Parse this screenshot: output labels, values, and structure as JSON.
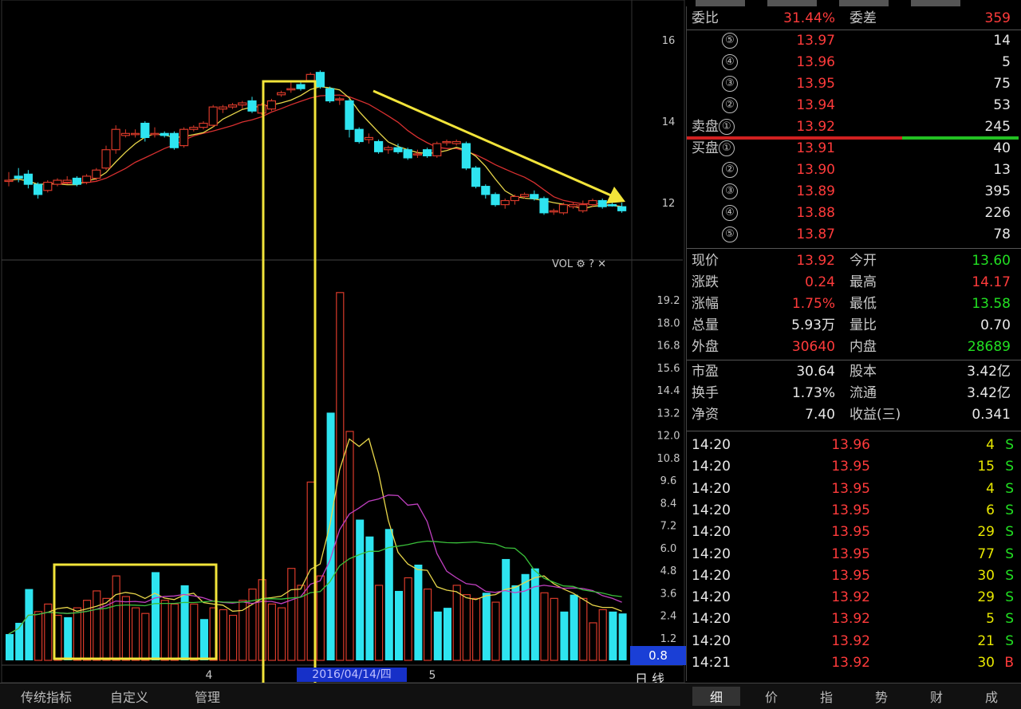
{
  "chart_data": {
    "type": "candlestick+bar",
    "price_axis": {
      "ticks": [
        "16",
        "14",
        "12"
      ],
      "ylim": [
        11.1,
        16.9
      ]
    },
    "volume_axis": {
      "ticks": [
        "19.2",
        "18.0",
        "16.8",
        "15.6",
        "14.4",
        "13.2",
        "12.0",
        "10.8",
        "9.6",
        "8.4",
        "7.2",
        "6.0",
        "4.8",
        "3.6",
        "2.4",
        "1.2"
      ],
      "ylim": [
        0,
        20.4
      ]
    },
    "x_ticks": [
      "4",
      "5"
    ],
    "candles": [
      {
        "o": 12.55,
        "c": 12.55,
        "h": 12.75,
        "l": 12.4,
        "up": true
      },
      {
        "o": 12.65,
        "c": 12.6,
        "h": 12.85,
        "l": 12.5,
        "up": false
      },
      {
        "o": 12.7,
        "c": 12.45,
        "h": 12.8,
        "l": 12.35,
        "up": false
      },
      {
        "o": 12.45,
        "c": 12.2,
        "h": 12.5,
        "l": 12.1,
        "up": false
      },
      {
        "o": 12.3,
        "c": 12.5,
        "h": 12.55,
        "l": 12.25,
        "up": true
      },
      {
        "o": 12.45,
        "c": 12.55,
        "h": 12.6,
        "l": 12.4,
        "up": true
      },
      {
        "o": 12.55,
        "c": 12.5,
        "h": 12.65,
        "l": 12.45,
        "up": true
      },
      {
        "o": 12.6,
        "c": 12.45,
        "h": 12.65,
        "l": 12.4,
        "up": false
      },
      {
        "o": 12.5,
        "c": 12.65,
        "h": 12.7,
        "l": 12.45,
        "up": true
      },
      {
        "o": 12.6,
        "c": 12.8,
        "h": 12.85,
        "l": 12.55,
        "up": true
      },
      {
        "o": 12.85,
        "c": 13.3,
        "h": 13.4,
        "l": 12.8,
        "up": true
      },
      {
        "o": 13.3,
        "c": 13.8,
        "h": 13.9,
        "l": 13.2,
        "up": true
      },
      {
        "o": 13.7,
        "c": 13.65,
        "h": 13.8,
        "l": 13.6,
        "up": true
      },
      {
        "o": 13.7,
        "c": 13.7,
        "h": 13.8,
        "l": 13.6,
        "up": true
      },
      {
        "o": 13.95,
        "c": 13.6,
        "h": 14.0,
        "l": 13.5,
        "up": false
      },
      {
        "o": 13.7,
        "c": 13.7,
        "h": 13.85,
        "l": 13.6,
        "up": true
      },
      {
        "o": 13.7,
        "c": 13.65,
        "h": 13.75,
        "l": 13.6,
        "up": false
      },
      {
        "o": 13.7,
        "c": 13.35,
        "h": 13.75,
        "l": 13.3,
        "up": false
      },
      {
        "o": 13.4,
        "c": 13.8,
        "h": 13.85,
        "l": 13.35,
        "up": true
      },
      {
        "o": 13.8,
        "c": 13.85,
        "h": 13.9,
        "l": 13.75,
        "up": true
      },
      {
        "o": 13.85,
        "c": 13.95,
        "h": 14.0,
        "l": 13.8,
        "up": true
      },
      {
        "o": 13.9,
        "c": 14.35,
        "h": 14.4,
        "l": 13.85,
        "up": true
      },
      {
        "o": 14.35,
        "c": 14.3,
        "h": 14.4,
        "l": 14.2,
        "up": true
      },
      {
        "o": 14.35,
        "c": 14.4,
        "h": 14.45,
        "l": 14.3,
        "up": true
      },
      {
        "o": 14.4,
        "c": 14.45,
        "h": 14.5,
        "l": 14.3,
        "up": true
      },
      {
        "o": 14.5,
        "c": 14.25,
        "h": 14.6,
        "l": 14.2,
        "up": false
      },
      {
        "o": 14.2,
        "c": 14.4,
        "h": 14.45,
        "l": 14.15,
        "up": true
      },
      {
        "o": 14.3,
        "c": 14.5,
        "h": 14.55,
        "l": 14.25,
        "up": true
      },
      {
        "o": 14.7,
        "c": 14.65,
        "h": 14.75,
        "l": 14.6,
        "up": true
      },
      {
        "o": 14.8,
        "c": 14.8,
        "h": 14.95,
        "l": 14.7,
        "up": true
      },
      {
        "o": 14.9,
        "c": 14.8,
        "h": 15.0,
        "l": 14.75,
        "up": false
      },
      {
        "o": 15.0,
        "c": 15.15,
        "h": 15.2,
        "l": 14.95,
        "up": true
      },
      {
        "o": 15.2,
        "c": 14.85,
        "h": 15.25,
        "l": 14.8,
        "up": false
      },
      {
        "o": 14.8,
        "c": 14.5,
        "h": 14.85,
        "l": 14.45,
        "up": false
      },
      {
        "o": 14.55,
        "c": 14.55,
        "h": 14.6,
        "l": 14.4,
        "up": true
      },
      {
        "o": 14.5,
        "c": 13.8,
        "h": 14.55,
        "l": 13.6,
        "up": false
      },
      {
        "o": 13.8,
        "c": 13.5,
        "h": 13.85,
        "l": 13.45,
        "up": false
      },
      {
        "o": 13.6,
        "c": 13.55,
        "h": 13.7,
        "l": 13.45,
        "up": true
      },
      {
        "o": 13.5,
        "c": 13.25,
        "h": 13.55,
        "l": 13.2,
        "up": false
      },
      {
        "o": 13.3,
        "c": 13.35,
        "h": 13.4,
        "l": 13.2,
        "up": true
      },
      {
        "o": 13.35,
        "c": 13.25,
        "h": 13.45,
        "l": 13.2,
        "up": false
      },
      {
        "o": 13.3,
        "c": 13.1,
        "h": 13.35,
        "l": 13.05,
        "up": false
      },
      {
        "o": 13.2,
        "c": 13.2,
        "h": 13.3,
        "l": 13.1,
        "up": true
      },
      {
        "o": 13.3,
        "c": 13.15,
        "h": 13.35,
        "l": 13.1,
        "up": false
      },
      {
        "o": 13.15,
        "c": 13.45,
        "h": 13.5,
        "l": 13.1,
        "up": true
      },
      {
        "o": 13.5,
        "c": 13.5,
        "h": 13.55,
        "l": 13.4,
        "up": true
      },
      {
        "o": 13.45,
        "c": 13.5,
        "h": 13.55,
        "l": 13.4,
        "up": true
      },
      {
        "o": 13.45,
        "c": 12.85,
        "h": 13.5,
        "l": 12.8,
        "up": false
      },
      {
        "o": 12.85,
        "c": 12.4,
        "h": 12.9,
        "l": 12.35,
        "up": false
      },
      {
        "o": 12.4,
        "c": 12.2,
        "h": 12.45,
        "l": 12.1,
        "up": false
      },
      {
        "o": 12.2,
        "c": 11.95,
        "h": 12.25,
        "l": 11.9,
        "up": false
      },
      {
        "o": 11.95,
        "c": 12.05,
        "h": 12.1,
        "l": 11.85,
        "up": true
      },
      {
        "o": 12.05,
        "c": 12.15,
        "h": 12.2,
        "l": 11.95,
        "up": true
      },
      {
        "o": 12.15,
        "c": 12.2,
        "h": 12.25,
        "l": 12.1,
        "up": true
      },
      {
        "o": 12.2,
        "c": 12.1,
        "h": 12.3,
        "l": 12.05,
        "up": false
      },
      {
        "o": 12.1,
        "c": 11.75,
        "h": 12.15,
        "l": 11.7,
        "up": false
      },
      {
        "o": 11.8,
        "c": 11.8,
        "h": 11.85,
        "l": 11.7,
        "up": true
      },
      {
        "o": 11.75,
        "c": 11.95,
        "h": 12.0,
        "l": 11.7,
        "up": true
      },
      {
        "o": 11.9,
        "c": 11.95,
        "h": 12.0,
        "l": 11.85,
        "up": true
      },
      {
        "o": 11.95,
        "c": 11.8,
        "h": 12.05,
        "l": 11.75,
        "up": true
      },
      {
        "o": 11.95,
        "c": 12.05,
        "h": 12.1,
        "l": 11.9,
        "up": true
      },
      {
        "o": 12.05,
        "c": 11.9,
        "h": 12.1,
        "l": 11.85,
        "up": false
      },
      {
        "o": 11.95,
        "c": 11.95,
        "h": 12.05,
        "l": 11.9,
        "up": false
      },
      {
        "o": 11.9,
        "c": 11.8,
        "h": 12.0,
        "l": 11.75,
        "up": false
      }
    ],
    "volumes": [
      {
        "v": 1.4,
        "up": false
      },
      {
        "v": 2.0,
        "up": false
      },
      {
        "v": 3.8,
        "up": false
      },
      {
        "v": 2.6,
        "up": true
      },
      {
        "v": 3.0,
        "up": true
      },
      {
        "v": 2.4,
        "up": true
      },
      {
        "v": 2.3,
        "up": false
      },
      {
        "v": 2.8,
        "up": true
      },
      {
        "v": 3.2,
        "up": true
      },
      {
        "v": 3.7,
        "up": true
      },
      {
        "v": 3.3,
        "up": true
      },
      {
        "v": 4.5,
        "up": true
      },
      {
        "v": 3.4,
        "up": true
      },
      {
        "v": 2.8,
        "up": true
      },
      {
        "v": 2.5,
        "up": true
      },
      {
        "v": 4.7,
        "up": false
      },
      {
        "v": 3.2,
        "up": true
      },
      {
        "v": 3.0,
        "up": true
      },
      {
        "v": 4.0,
        "up": false
      },
      {
        "v": 3.0,
        "up": true
      },
      {
        "v": 2.2,
        "up": false
      },
      {
        "v": 2.8,
        "up": true
      },
      {
        "v": 2.7,
        "up": true
      },
      {
        "v": 2.4,
        "up": true
      },
      {
        "v": 3.2,
        "up": true
      },
      {
        "v": 3.8,
        "up": true
      },
      {
        "v": 4.3,
        "up": true
      },
      {
        "v": 3.0,
        "up": true
      },
      {
        "v": 2.8,
        "up": true
      },
      {
        "v": 4.9,
        "up": true
      },
      {
        "v": 4.0,
        "up": true
      },
      {
        "v": 9.5,
        "up": true
      },
      {
        "v": 4.5,
        "up": true
      },
      {
        "v": 13.2,
        "up": false
      },
      {
        "v": 19.6,
        "up": true
      },
      {
        "v": 12.2,
        "up": true
      },
      {
        "v": 7.5,
        "up": false
      },
      {
        "v": 6.6,
        "up": false
      },
      {
        "v": 4.0,
        "up": true
      },
      {
        "v": 7.0,
        "up": false
      },
      {
        "v": 3.7,
        "up": false
      },
      {
        "v": 4.4,
        "up": true
      },
      {
        "v": 5.1,
        "up": false
      },
      {
        "v": 3.8,
        "up": true
      },
      {
        "v": 2.6,
        "up": false
      },
      {
        "v": 2.8,
        "up": false
      },
      {
        "v": 4.0,
        "up": true
      },
      {
        "v": 3.5,
        "up": true
      },
      {
        "v": 3.3,
        "up": true
      },
      {
        "v": 3.6,
        "up": false
      },
      {
        "v": 3.1,
        "up": true
      },
      {
        "v": 5.4,
        "up": false
      },
      {
        "v": 4.0,
        "up": false
      },
      {
        "v": 4.6,
        "up": false
      },
      {
        "v": 4.9,
        "up": false
      },
      {
        "v": 3.6,
        "up": true
      },
      {
        "v": 3.3,
        "up": true
      },
      {
        "v": 2.6,
        "up": false
      },
      {
        "v": 3.5,
        "up": false
      },
      {
        "v": 3.3,
        "up": true
      },
      {
        "v": 2.0,
        "up": true
      },
      {
        "v": 2.7,
        "up": true
      },
      {
        "v": 2.6,
        "up": false
      },
      {
        "v": 2.5,
        "up": false
      }
    ],
    "date_label": "2016/04/14/四",
    "vol_indicator": "VOL",
    "vol_value": "0.8",
    "period": "日 线"
  },
  "order_book": {
    "weibi_label": "委比",
    "weibi": "31.44%",
    "weicha_label": "委差",
    "weicha": "359",
    "sell": [
      {
        "lvl": "⑤",
        "price": "13.97",
        "vol": "14"
      },
      {
        "lvl": "④",
        "price": "13.96",
        "vol": "5"
      },
      {
        "lvl": "③",
        "price": "13.95",
        "vol": "75"
      },
      {
        "lvl": "②",
        "price": "13.94",
        "vol": "53"
      },
      {
        "lvl": "①",
        "price": "13.92",
        "vol": "245",
        "label": "卖盘"
      }
    ],
    "buy": [
      {
        "lvl": "①",
        "price": "13.91",
        "vol": "40",
        "label": "买盘"
      },
      {
        "lvl": "②",
        "price": "13.90",
        "vol": "13"
      },
      {
        "lvl": "③",
        "price": "13.89",
        "vol": "395"
      },
      {
        "lvl": "④",
        "price": "13.88",
        "vol": "226"
      },
      {
        "lvl": "⑤",
        "price": "13.87",
        "vol": "78"
      }
    ]
  },
  "quote": [
    {
      "l1": "现价",
      "v1": "13.92",
      "c1": "red",
      "l2": "今开",
      "v2": "13.60",
      "c2": "green"
    },
    {
      "l1": "涨跌",
      "v1": "0.24",
      "c1": "red",
      "l2": "最高",
      "v2": "14.17",
      "c2": "red"
    },
    {
      "l1": "涨幅",
      "v1": "1.75%",
      "c1": "red",
      "l2": "最低",
      "v2": "13.58",
      "c2": "green"
    },
    {
      "l1": "总量",
      "v1": "5.93万",
      "c1": "white",
      "l2": "量比",
      "v2": "0.70",
      "c2": "white"
    },
    {
      "l1": "外盘",
      "v1": "30640",
      "c1": "red",
      "l2": "内盘",
      "v2": "28689",
      "c2": "green"
    }
  ],
  "fundamentals": [
    {
      "l1": "市盈",
      "v1": "30.64",
      "l2": "股本",
      "v2": "3.42亿"
    },
    {
      "l1": "换手",
      "v1": "1.73%",
      "l2": "流通",
      "v2": "3.42亿"
    },
    {
      "l1": "净资",
      "v1": "7.40",
      "l2": "收益(三)",
      "v2": "0.341"
    }
  ],
  "ticks": [
    {
      "t": "14:20",
      "p": "13.96",
      "v": "4",
      "s": "S"
    },
    {
      "t": "14:20",
      "p": "13.95",
      "v": "15",
      "s": "S"
    },
    {
      "t": "14:20",
      "p": "13.95",
      "v": "4",
      "s": "S"
    },
    {
      "t": "14:20",
      "p": "13.95",
      "v": "6",
      "s": "S"
    },
    {
      "t": "14:20",
      "p": "13.95",
      "v": "29",
      "s": "S"
    },
    {
      "t": "14:20",
      "p": "13.95",
      "v": "77",
      "s": "S"
    },
    {
      "t": "14:20",
      "p": "13.95",
      "v": "30",
      "s": "S"
    },
    {
      "t": "14:20",
      "p": "13.92",
      "v": "29",
      "s": "S"
    },
    {
      "t": "14:20",
      "p": "13.92",
      "v": "5",
      "s": "S"
    },
    {
      "t": "14:20",
      "p": "13.92",
      "v": "21",
      "s": "S"
    },
    {
      "t": "14:21",
      "p": "13.92",
      "v": "30",
      "s": "B"
    }
  ],
  "bottom_tabs": [
    "细",
    "价",
    "指",
    "势",
    "财",
    "成"
  ],
  "left_tabs": [
    "传统指标",
    "自定义",
    "管理"
  ],
  "colors": {
    "up": "#d83a2a",
    "down": "#2ee4f0",
    "annotation": "#f2e43a",
    "ma1": "#e8d64a",
    "ma2": "#d83030",
    "ma3": "#c040c0",
    "ma4": "#3ac03a"
  }
}
